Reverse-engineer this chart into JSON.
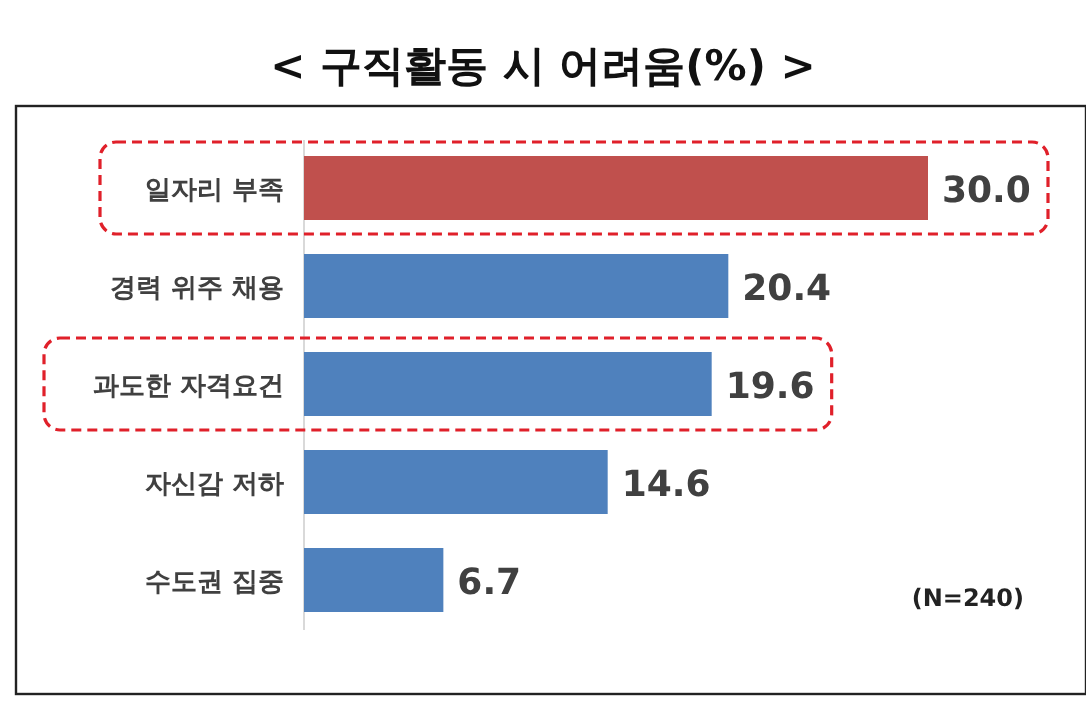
{
  "chart_data": {
    "type": "bar",
    "orientation": "horizontal",
    "title": "< 구직활동 시 어려움(%) >",
    "categories": [
      "일자리 부족",
      "경력 위주 채용",
      "과도한 자격요건",
      "자신감 저하",
      "수도권 집중"
    ],
    "values": [
      30.0,
      20.4,
      19.6,
      14.6,
      6.7
    ],
    "value_labels": [
      "30.0",
      "20.4",
      "19.6",
      "14.6",
      "6.7"
    ],
    "colors": [
      "#c0504d",
      "#4f81bd",
      "#4f81bd",
      "#4f81bd",
      "#4f81bd"
    ],
    "annotations": [
      "(N=240)"
    ]
  }
}
